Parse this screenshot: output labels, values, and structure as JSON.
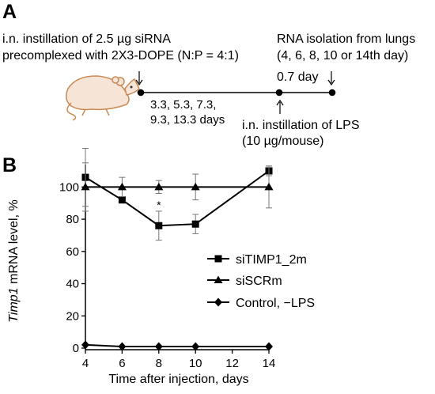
{
  "panel_a": {
    "label": "A",
    "instillation_text_1": "i.n. instillation of 2.5 µg siRNA",
    "instillation_text_2": "precomplexed with 2X3-DOPE (N:P = 4:1)",
    "rna_text_1": "RNA isolation from lungs",
    "rna_text_2": "(4, 6, 8, 10 or 14th day)",
    "interval_days": "0.7 day",
    "days_text_1": "3.3, 5.3, 7.3,",
    "days_text_2": "9.3, 13.3 days",
    "lps_text_1": "i.n. instillation of LPS",
    "lps_text_2": "(10 µg/mouse)",
    "mouse_icon": "mouse-icon"
  },
  "panel_b": {
    "label": "B",
    "ylabel_italic": "Timp1",
    "ylabel_rest": " mRNA level, %"
  },
  "chart_data": {
    "type": "line",
    "xlabel": "Time after injection, days",
    "ylabel": "Timp1 mRNA level, %",
    "x_ticks": [
      4,
      6,
      8,
      10,
      12,
      14
    ],
    "y_ticks": [
      0,
      20,
      40,
      60,
      80,
      100
    ],
    "xlim": [
      4,
      14
    ],
    "ylim": [
      0,
      110
    ],
    "legend_position": "right",
    "series": [
      {
        "name": "siTIMP1_2m",
        "marker": "square",
        "x": [
          4,
          6,
          8,
          10,
          14
        ],
        "y": [
          106,
          92,
          76,
          77,
          110
        ],
        "err": [
          18,
          2,
          9,
          6,
          3
        ]
      },
      {
        "name": "siSCRm",
        "marker": "triangle",
        "x": [
          4,
          6,
          8,
          10,
          14
        ],
        "y": [
          100,
          100,
          100,
          100,
          100
        ],
        "err": [
          15,
          6,
          4,
          8,
          13
        ]
      },
      {
        "name": "Control, −LPS",
        "marker": "diamond",
        "x": [
          4,
          6,
          8,
          10,
          14
        ],
        "y": [
          2,
          1,
          1,
          1,
          1
        ],
        "err": [
          0,
          0,
          0,
          0,
          0
        ]
      }
    ],
    "annotations": [
      {
        "x": 8,
        "text": "*",
        "series": "siTIMP1_2m"
      }
    ],
    "colors": {
      "line": "#000000",
      "mouse_fill": "#f6e5d6",
      "mouse_outline": "#c98a55"
    }
  }
}
